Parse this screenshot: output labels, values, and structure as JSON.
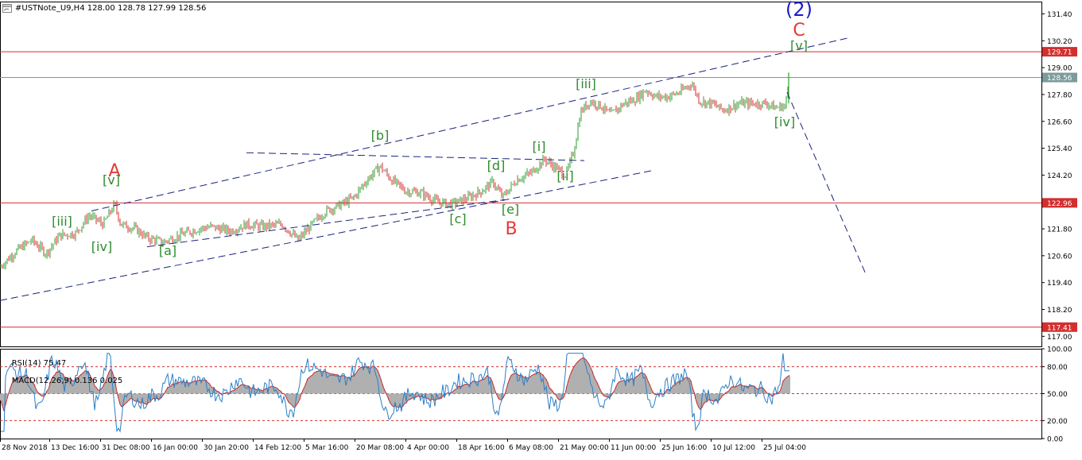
{
  "header": {
    "symbol": "#USTNote_U9,H4",
    "open": "128.00",
    "high": "128.78",
    "low": "127.99",
    "close": "128.56"
  },
  "indicator_header": {
    "rsi": "RSI(14) 75.47",
    "macd": "MACD(12,26,9) 0.136 0.025"
  },
  "chart_data": [
    {
      "type": "candlestick",
      "title": "#USTNote_U9,H4",
      "y_ticks": [
        "131.40",
        "130.20",
        "129.00",
        "127.80",
        "126.60",
        "125.40",
        "124.20",
        "121.80",
        "120.60",
        "119.40",
        "118.20",
        "117.00"
      ],
      "ylim": [
        116.55,
        131.95
      ],
      "x_ticks": [
        "28 Nov 2018",
        "13 Dec 16:00",
        "31 Dec 08:00",
        "16 Jan 00:00",
        "30 Jan 20:00",
        "14 Feb 12:00",
        "5 Mar 16:00",
        "20 Mar 08:00",
        "4 Apr 00:00",
        "18 Apr 16:00",
        "6 May 08:00",
        "21 May 00:00",
        "11 Jun 00:00",
        "25 Jun 16:00",
        "10 Jul 12:00",
        "25 Jul 04:00"
      ],
      "price_anchors": [
        [
          0,
          120.1
        ],
        [
          20,
          120.8
        ],
        [
          40,
          121.3
        ],
        [
          58,
          120.7
        ],
        [
          75,
          121.5
        ],
        [
          95,
          121.6
        ],
        [
          112,
          122.4
        ],
        [
          130,
          122.0
        ],
        [
          144,
          122.9
        ],
        [
          152,
          122.0
        ],
        [
          170,
          121.8
        ],
        [
          185,
          121.4
        ],
        [
          205,
          121.2
        ],
        [
          225,
          121.5
        ],
        [
          250,
          121.8
        ],
        [
          265,
          121.9
        ],
        [
          290,
          121.7
        ],
        [
          310,
          122.0
        ],
        [
          330,
          121.9
        ],
        [
          355,
          122.0
        ],
        [
          375,
          121.3
        ],
        [
          395,
          122.1
        ],
        [
          410,
          122.6
        ],
        [
          430,
          122.9
        ],
        [
          445,
          123.2
        ],
        [
          462,
          124.0
        ],
        [
          478,
          124.6
        ],
        [
          492,
          124.0
        ],
        [
          510,
          123.5
        ],
        [
          530,
          123.4
        ],
        [
          550,
          123.0
        ],
        [
          568,
          122.9
        ],
        [
          590,
          123.2
        ],
        [
          606,
          123.5
        ],
        [
          620,
          123.9
        ],
        [
          632,
          123.2
        ],
        [
          650,
          124.0
        ],
        [
          668,
          124.3
        ],
        [
          685,
          124.9
        ],
        [
          700,
          124.5
        ],
        [
          712,
          124.2
        ],
        [
          722,
          125.3
        ],
        [
          730,
          127.0
        ],
        [
          742,
          127.5
        ],
        [
          755,
          127.3
        ],
        [
          768,
          126.9
        ],
        [
          785,
          127.4
        ],
        [
          800,
          127.6
        ],
        [
          812,
          128.0
        ],
        [
          825,
          127.7
        ],
        [
          840,
          127.7
        ],
        [
          855,
          127.9
        ],
        [
          870,
          128.3
        ],
        [
          880,
          127.5
        ],
        [
          895,
          127.4
        ],
        [
          910,
          127.1
        ],
        [
          930,
          127.4
        ],
        [
          950,
          127.4
        ],
        [
          965,
          127.4
        ],
        [
          975,
          127.2
        ],
        [
          988,
          127.3
        ],
        [
          993,
          128.56
        ]
      ],
      "horizontal_lines": [
        {
          "value": 129.71,
          "label": "129.71",
          "color": "#d32f2f"
        },
        {
          "value": 128.56,
          "label": "128.56",
          "color": "#7c9a9a"
        },
        {
          "value": 122.96,
          "label": "122.96",
          "color": "#d32f2f"
        },
        {
          "value": 117.41,
          "label": "117.41",
          "color": "#d32f2f"
        }
      ],
      "wave_labels": [
        {
          "text": "(2)",
          "color": "#1a1ad0"
        },
        {
          "text": "C",
          "color": "#e53935"
        },
        {
          "text": "[v]",
          "color": "#2e8b2e"
        },
        {
          "text": "[iii]",
          "color": "#2e8b2e"
        },
        {
          "text": "[iv]",
          "color": "#2e8b2e"
        },
        {
          "text": "[i]",
          "color": "#2e8b2e"
        },
        {
          "text": "[ii]",
          "color": "#2e8b2e"
        },
        {
          "text": "[b]",
          "color": "#2e8b2e"
        },
        {
          "text": "[d]",
          "color": "#2e8b2e"
        },
        {
          "text": "[c]",
          "color": "#2e8b2e"
        },
        {
          "text": "[e]",
          "color": "#2e8b2e"
        },
        {
          "text": "B",
          "color": "#e53935"
        },
        {
          "text": "A",
          "color": "#e53935"
        },
        {
          "text": "[v]",
          "color": "#2e8b2e"
        },
        {
          "text": "[iii]",
          "color": "#2e8b2e"
        },
        {
          "text": "[iv]",
          "color": "#2e8b2e"
        },
        {
          "text": "[a]",
          "color": "#2e8b2e"
        }
      ],
      "colors": {
        "bull": "#2e9e2e",
        "bear": "#d32f2f",
        "trendline": "#1a237e",
        "grid": "#cccccc"
      }
    },
    {
      "type": "line",
      "title": "RSI(14) 75.47 MACD(12,26,9) 0.136 0.025",
      "y_ticks": [
        "100.00",
        "80.00",
        "50.00",
        "20.00",
        "0.00"
      ],
      "ylim": [
        0,
        100
      ],
      "reference_levels": [
        80,
        50,
        20
      ],
      "rsi_last": 75.47,
      "macd_main": 0.136,
      "macd_signal": 0.025,
      "colors": {
        "rsi": "#2a7fc9",
        "signal": "#c62828",
        "histogram": "#b0b0b0",
        "levels": "#d32f2f"
      }
    }
  ]
}
